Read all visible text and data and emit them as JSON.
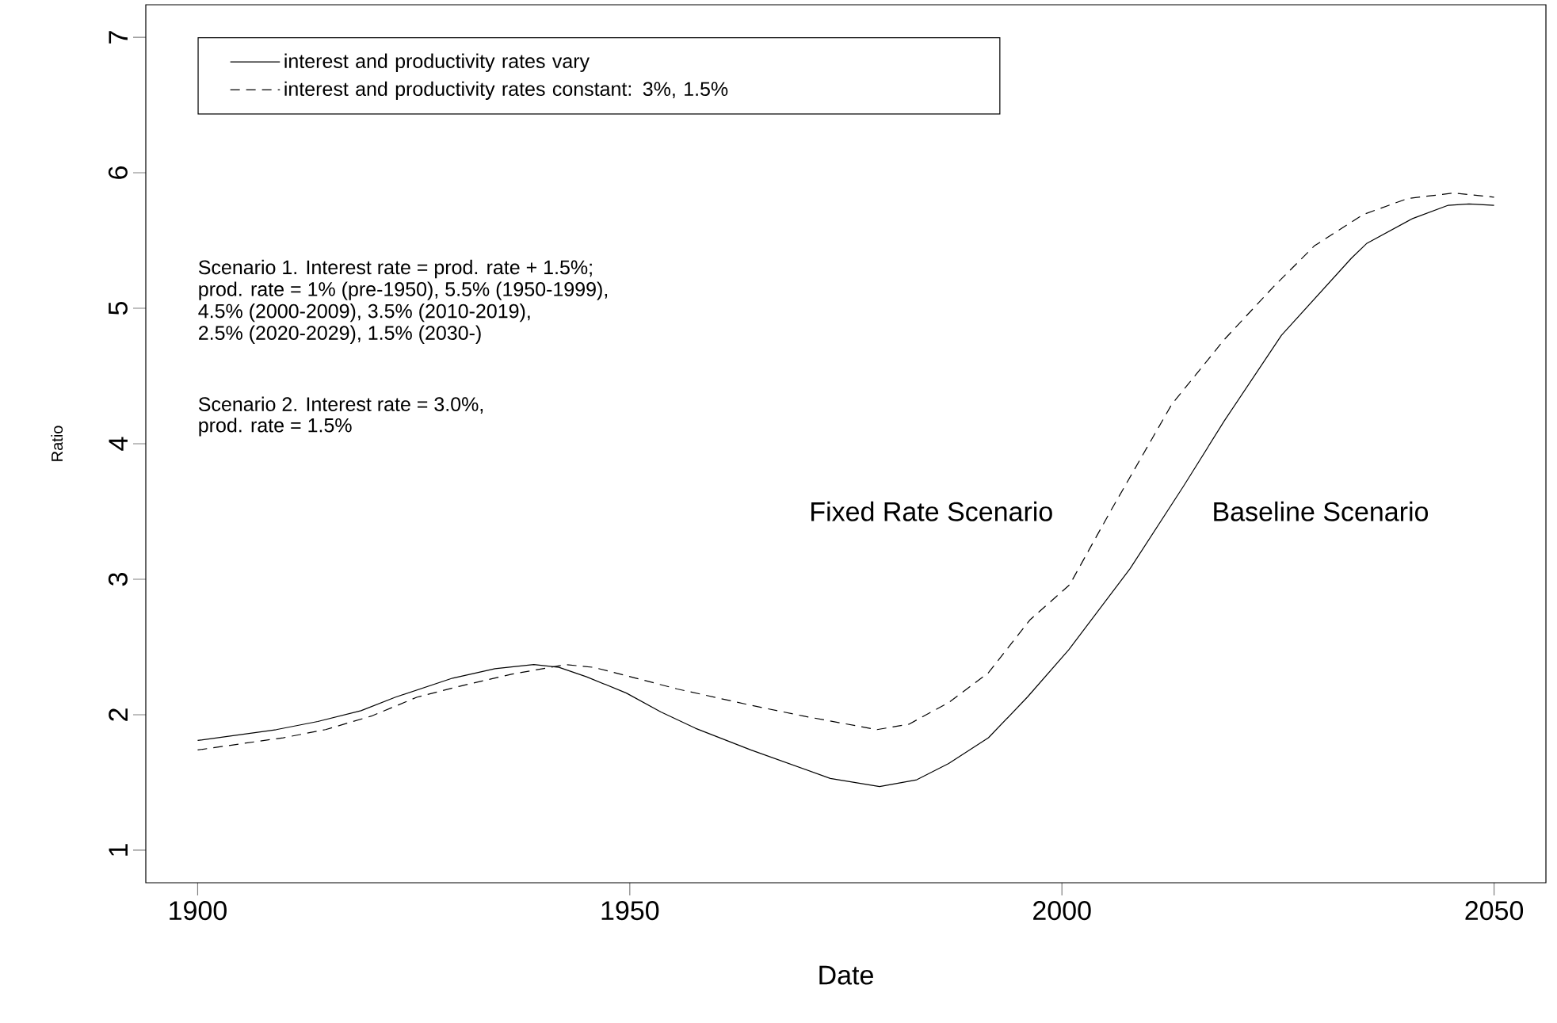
{
  "chart_data": {
    "type": "line",
    "xlabel": "Date",
    "ylabel": "Ratio",
    "xlim": [
      1894,
      2056
    ],
    "ylim": [
      0.76,
      7.24
    ],
    "xticks": [
      1900,
      1950,
      2000,
      2050
    ],
    "yticks": [
      1,
      2,
      3,
      4,
      5,
      6,
      7
    ],
    "legend": "top left",
    "marker": "none",
    "series": [
      {
        "name": "interest and productivity rates vary",
        "color": "#000000",
        "line_style": "solid",
        "x": [
          1900,
          1909.1,
          1913.9,
          1918.9,
          1922.9,
          1929.5,
          1934.4,
          1938.9,
          1941.8,
          1945.0,
          1949.6,
          1953.6,
          1957.6,
          1964.0,
          1973.2,
          1978.9,
          1983.2,
          1986.9,
          1991.5,
          1996.0,
          2000.8,
          2007.9,
          2014.1,
          2018.8,
          2025.4,
          2033.5,
          2035.3,
          2040.5,
          2044.7,
          2047.1,
          2050
        ],
        "values": [
          1.81,
          1.89,
          1.95,
          2.03,
          2.13,
          2.27,
          2.34,
          2.37,
          2.35,
          2.28,
          2.16,
          2.02,
          1.9,
          1.74,
          1.53,
          1.47,
          1.52,
          1.64,
          1.83,
          2.13,
          2.48,
          3.08,
          3.69,
          4.17,
          4.8,
          5.37,
          5.48,
          5.66,
          5.76,
          5.77,
          5.76
        ]
      },
      {
        "name": "interest and productivity rates constant: 3%, 1.5%",
        "color": "#000000",
        "line_style": "dashed",
        "x": [
          1900,
          1909.9,
          1914.8,
          1920.1,
          1925.4,
          1930.3,
          1936.4,
          1942.6,
          1945.8,
          1950.7,
          1955.5,
          1964.0,
          1970.1,
          1978.6,
          1982.3,
          1986.9,
          1991.5,
          1996.3,
          2000.9,
          2005.6,
          2012.7,
          2018.8,
          2024.5,
          2029.2,
          2034.8,
          2040.0,
          2045.3,
          2050
        ],
        "values": [
          1.74,
          1.83,
          1.89,
          1.99,
          2.13,
          2.21,
          2.3,
          2.37,
          2.35,
          2.27,
          2.19,
          2.07,
          1.99,
          1.89,
          1.93,
          2.09,
          2.31,
          2.7,
          2.96,
          3.5,
          4.29,
          4.77,
          5.16,
          5.46,
          5.69,
          5.81,
          5.85,
          5.82
        ]
      }
    ],
    "annotations": [
      "Scenario 1.  Interest rate = prod. rate + 1.5%;",
      "prod. rate = 1% (pre-1950), 5.5% (1950-1999),",
      "4.5% (2000-2009), 3.5% (2010-2019),",
      "2.5% (2020-2029), 1.5% (2030-)",
      "Scenario 2.  Interest rate = 3.0%,",
      "prod. rate = 1.5%",
      "Fixed Rate Scenario",
      "Baseline Scenario"
    ]
  }
}
